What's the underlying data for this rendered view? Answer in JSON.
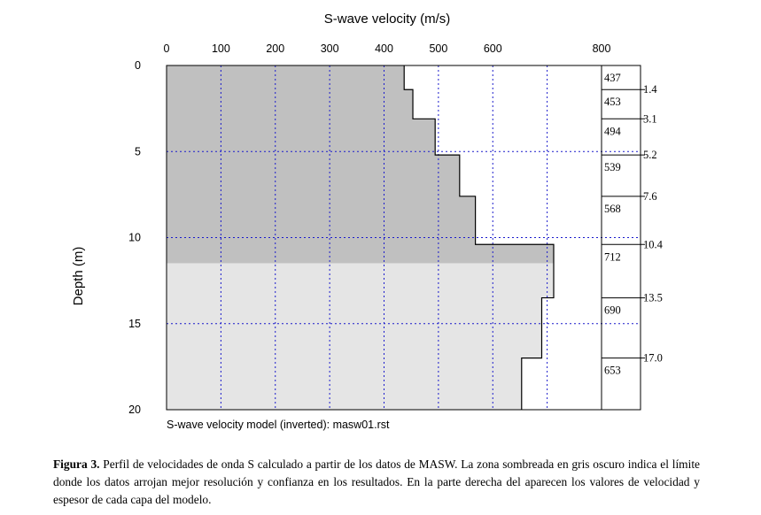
{
  "chart_data": {
    "type": "line",
    "title": "S-wave velocity (m/s)",
    "xlabel": "S-wave velocity (m/s)",
    "ylabel": "Depth (m)",
    "xlim": [
      0,
      800
    ],
    "ylim": [
      0,
      20
    ],
    "y_inverted": true,
    "x_ticks": [
      "0",
      "100",
      "200",
      "300",
      "400",
      "500",
      "600",
      "800"
    ],
    "x_tick_values": [
      0,
      100,
      200,
      300,
      400,
      500,
      600,
      800
    ],
    "y_ticks": [
      "0",
      "5",
      "10",
      "15",
      "20"
    ],
    "y_tick_values": [
      0,
      5,
      10,
      15,
      20
    ],
    "grid": true,
    "x_label_position": "top",
    "dark_zone_depth": 11.5,
    "layers": [
      {
        "top": 0.0,
        "bottom": 1.4,
        "velocity": 437
      },
      {
        "top": 1.4,
        "bottom": 3.1,
        "velocity": 453
      },
      {
        "top": 3.1,
        "bottom": 5.2,
        "velocity": 494
      },
      {
        "top": 5.2,
        "bottom": 7.6,
        "velocity": 539
      },
      {
        "top": 7.6,
        "bottom": 10.4,
        "velocity": 568
      },
      {
        "top": 10.4,
        "bottom": 13.5,
        "velocity": 712
      },
      {
        "top": 13.5,
        "bottom": 17.0,
        "velocity": 690
      },
      {
        "top": 17.0,
        "bottom": 20.0,
        "velocity": 653
      }
    ],
    "boundary_labels": [
      "1.4",
      "3.1",
      "5.2",
      "7.6",
      "10.4",
      "13.5",
      "17.0"
    ],
    "velocity_labels": [
      "437",
      "453",
      "494",
      "539",
      "568",
      "712",
      "690",
      "653"
    ],
    "footer": "S-wave velocity model (inverted): masw01.rst"
  },
  "caption": {
    "label": "Figura 3.",
    "text": " Perfil de velocidades de onda S calculado a partir de los datos de MASW. La zona sombreada en gris oscuro indica el límite donde los datos arrojan mejor resolución y confianza en los resultados. En la parte derecha del aparecen los valores de velocidad y espesor de cada capa del modelo."
  },
  "colors": {
    "dark_zone": "#c0c0c0",
    "light_zone": "#e5e5e5",
    "grid": "#1a1acc",
    "line": "#000000"
  }
}
